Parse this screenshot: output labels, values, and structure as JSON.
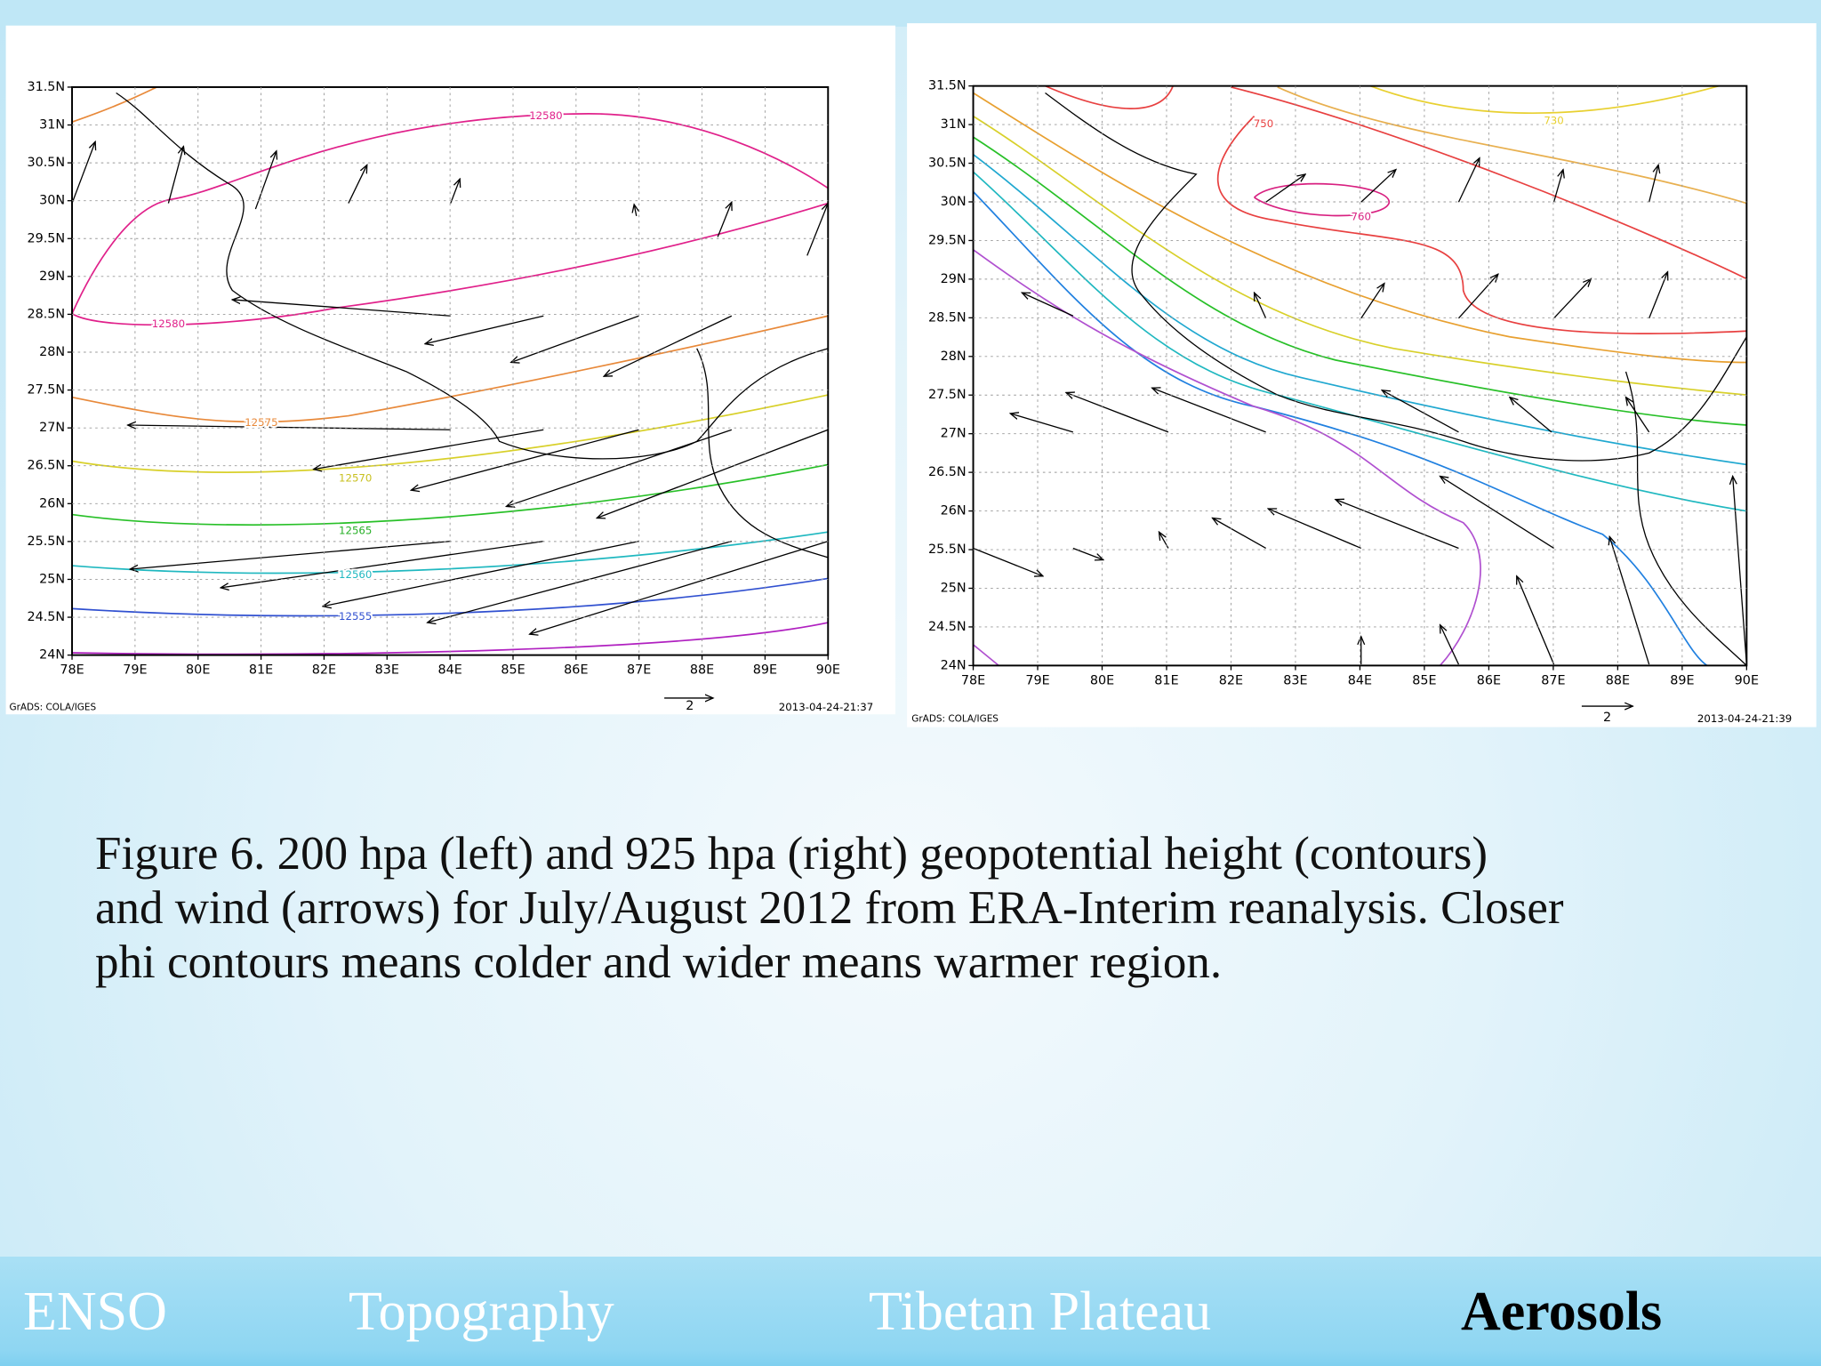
{
  "figures": [
    {
      "lat_labels": [
        "31.5N",
        "31N",
        "30.5N",
        "30N",
        "29.5N",
        "29N",
        "28.5N",
        "28N",
        "27.5N",
        "27N",
        "26.5N",
        "26N",
        "25.5N",
        "25N",
        "24.5N",
        "24N"
      ],
      "lon_labels": [
        "78E",
        "79E",
        "80E",
        "81E",
        "82E",
        "83E",
        "84E",
        "85E",
        "86E",
        "87E",
        "88E",
        "89E",
        "90E"
      ],
      "contour_labels": [
        12580,
        12580,
        12575,
        12570,
        12565,
        12560,
        12555
      ],
      "credit": "GrADS: COLA/IGES",
      "scale_label": "2",
      "timestamp": "2013-04-24-21:37"
    },
    {
      "lat_labels": [
        "31.5N",
        "31N",
        "30.5N",
        "30N",
        "29.5N",
        "29N",
        "28.5N",
        "28N",
        "27.5N",
        "27N",
        "26.5N",
        "26N",
        "25.5N",
        "25N",
        "24.5N",
        "24N"
      ],
      "lon_labels": [
        "78E",
        "79E",
        "80E",
        "81E",
        "82E",
        "83E",
        "84E",
        "85E",
        "86E",
        "87E",
        "88E",
        "89E",
        "90E"
      ],
      "contour_labels": [
        750,
        760,
        730
      ],
      "credit": "GrADS: COLA/IGES",
      "scale_label": "2",
      "timestamp": "2013-04-24-21:39"
    }
  ],
  "caption": [
    "Figure 6. 200 hpa (left) and 925 hpa (right) geopotential height (contours)",
    "and wind (arrows) for July/August 2012 from ERA-Interim reanalysis. Closer",
    "phi contours means colder and wider means warmer region."
  ],
  "nav": [
    "ENSO",
    "Topography",
    "Tibetan Plateau",
    "Aerosols"
  ]
}
